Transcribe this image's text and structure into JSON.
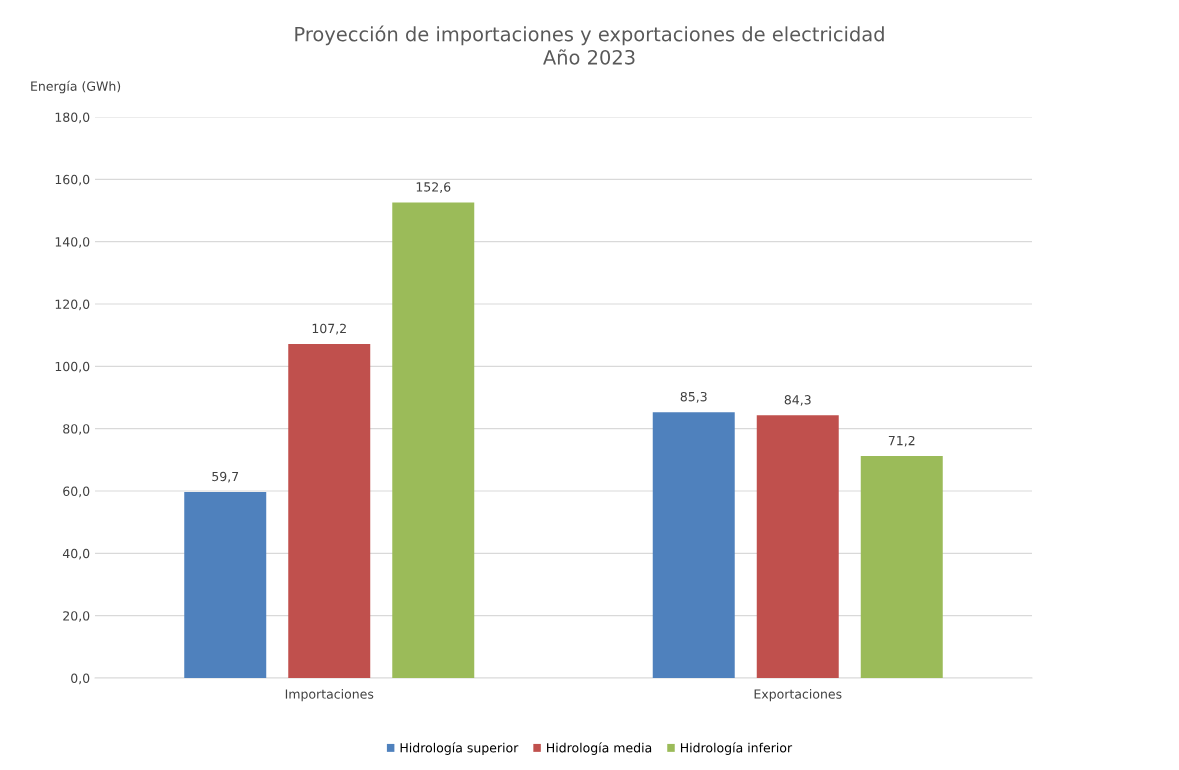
{
  "chart_data": {
    "type": "bar",
    "title": "Proyección de importaciones y exportaciones de electricidad\nAño 2023",
    "ylabel": "Energía (GWh)",
    "categories": [
      "Importaciones",
      "Exportaciones"
    ],
    "series": [
      {
        "name": "Hidrología superior",
        "color": "#4f81bd",
        "values": [
          59.7,
          85.3
        ],
        "value_labels": [
          "59,7",
          "85,3"
        ]
      },
      {
        "name": "Hidrología media",
        "color": "#c0504d",
        "values": [
          107.2,
          84.3
        ],
        "value_labels": [
          "107,2",
          "84,3"
        ]
      },
      {
        "name": "Hidrología inferior",
        "color": "#9bbb59",
        "values": [
          152.6,
          71.2
        ],
        "value_labels": [
          "152,6",
          "71,2"
        ]
      }
    ],
    "ylim": [
      0,
      180
    ],
    "yticks": [
      {
        "value": 0,
        "label": "0,0"
      },
      {
        "value": 20,
        "label": "20,0"
      },
      {
        "value": 40,
        "label": "40,0"
      },
      {
        "value": 60,
        "label": "60,0"
      },
      {
        "value": 80,
        "label": "80,0"
      },
      {
        "value": 100,
        "label": "100,0"
      },
      {
        "value": 120,
        "label": "120,0"
      },
      {
        "value": 140,
        "label": "140,0"
      },
      {
        "value": 160,
        "label": "160,0"
      },
      {
        "value": 180,
        "label": "180,0"
      }
    ],
    "grid": "y",
    "legend": "bottom"
  }
}
